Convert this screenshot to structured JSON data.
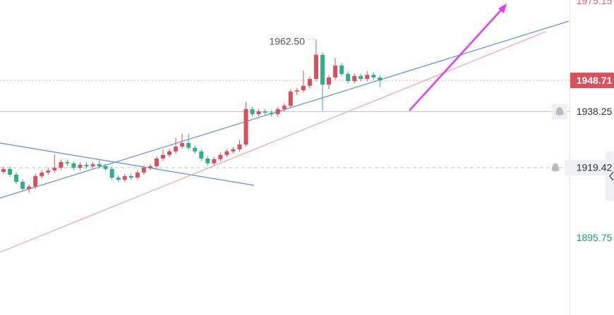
{
  "chart_data": {
    "type": "candlestick",
    "ylim": [
      1870,
      1975.7
    ],
    "yticks": [
      1975.15,
      1895.75
    ],
    "ytick_colors": [
      "#e0606e",
      "#1a9e77"
    ],
    "up_color": "#d9505a",
    "down_color": "#2fae8a",
    "current_price": 1948.71,
    "alerts": [
      1938.25,
      1919.42
    ],
    "max_label": {
      "value": 1962.5,
      "label": "1962.50"
    },
    "candles": [
      [
        1918.0,
        1919.8,
        1917.2,
        1919.0
      ],
      [
        1919.0,
        1919.8,
        1916.3,
        1917.1
      ],
      [
        1917.1,
        1917.9,
        1913.9,
        1914.7
      ],
      [
        1914.7,
        1915.5,
        1911.5,
        1912.3
      ],
      [
        1912.3,
        1913.9,
        1911.0,
        1913.1
      ],
      [
        1913.1,
        1917.4,
        1912.3,
        1916.6
      ],
      [
        1916.6,
        1918.6,
        1915.8,
        1917.8
      ],
      [
        1917.8,
        1919.3,
        1917.0,
        1918.5
      ],
      [
        1918.5,
        1924.0,
        1917.7,
        1919.4
      ],
      [
        1919.4,
        1922.1,
        1918.6,
        1921.3
      ],
      [
        1921.3,
        1922.1,
        1920.1,
        1920.9
      ],
      [
        1920.9,
        1921.7,
        1918.6,
        1919.4
      ],
      [
        1919.4,
        1921.2,
        1918.6,
        1920.4
      ],
      [
        1920.4,
        1921.2,
        1919.1,
        1919.9
      ],
      [
        1919.9,
        1921.4,
        1919.1,
        1920.6
      ],
      [
        1920.6,
        1922.0,
        1919.1,
        1919.9
      ],
      [
        1919.9,
        1920.7,
        1918.2,
        1919.0
      ],
      [
        1919.0,
        1919.8,
        1915.3,
        1916.1
      ],
      [
        1916.1,
        1916.9,
        1914.6,
        1915.4
      ],
      [
        1915.4,
        1917.4,
        1914.6,
        1916.6
      ],
      [
        1916.6,
        1917.4,
        1915.3,
        1916.1
      ],
      [
        1916.1,
        1918.6,
        1915.3,
        1917.8
      ],
      [
        1917.8,
        1920.2,
        1917.0,
        1919.4
      ],
      [
        1919.4,
        1920.7,
        1918.6,
        1919.9
      ],
      [
        1919.9,
        1923.3,
        1919.1,
        1922.5
      ],
      [
        1922.5,
        1925.5,
        1921.7,
        1923.7
      ],
      [
        1923.7,
        1925.7,
        1922.9,
        1924.9
      ],
      [
        1924.9,
        1929.5,
        1924.1,
        1926.5
      ],
      [
        1926.5,
        1930.8,
        1925.7,
        1927.7
      ],
      [
        1927.7,
        1930.8,
        1925.3,
        1926.1
      ],
      [
        1926.1,
        1926.9,
        1924.1,
        1924.9
      ],
      [
        1924.9,
        1925.7,
        1921.7,
        1922.5
      ],
      [
        1922.5,
        1923.3,
        1920.1,
        1920.9
      ],
      [
        1920.9,
        1923.1,
        1920.1,
        1922.3
      ],
      [
        1922.3,
        1924.5,
        1921.5,
        1923.7
      ],
      [
        1923.7,
        1925.7,
        1922.9,
        1924.9
      ],
      [
        1924.9,
        1926.4,
        1924.1,
        1925.6
      ],
      [
        1925.6,
        1928.6,
        1924.8,
        1927.2
      ],
      [
        1927.2,
        1941.5,
        1926.5,
        1939.1
      ],
      [
        1939.1,
        1939.9,
        1936.6,
        1937.4
      ],
      [
        1937.4,
        1939.1,
        1936.6,
        1938.3
      ],
      [
        1938.3,
        1939.1,
        1937.1,
        1937.9
      ],
      [
        1937.9,
        1938.7,
        1936.6,
        1937.4
      ],
      [
        1937.4,
        1939.9,
        1936.6,
        1939.1
      ],
      [
        1939.1,
        1941.0,
        1938.3,
        1940.2
      ],
      [
        1940.2,
        1945.8,
        1939.4,
        1945.0
      ],
      [
        1945.0,
        1946.2,
        1943.8,
        1945.4
      ],
      [
        1945.4,
        1952.0,
        1944.6,
        1946.9
      ],
      [
        1946.9,
        1950.0,
        1946.1,
        1949.2
      ],
      [
        1949.2,
        1962.5,
        1948.4,
        1957.3
      ],
      [
        1957.3,
        1958.1,
        1938.5,
        1947.3
      ],
      [
        1947.3,
        1950.5,
        1945.8,
        1949.7
      ],
      [
        1949.7,
        1956.3,
        1948.9,
        1953.7
      ],
      [
        1953.7,
        1954.5,
        1950.1,
        1950.9
      ],
      [
        1950.9,
        1951.7,
        1947.7,
        1948.5
      ],
      [
        1948.5,
        1951.0,
        1947.7,
        1950.2
      ],
      [
        1950.2,
        1951.0,
        1948.4,
        1949.2
      ],
      [
        1949.2,
        1951.9,
        1948.4,
        1950.6
      ],
      [
        1950.6,
        1951.4,
        1948.9,
        1949.7
      ],
      [
        1949.7,
        1950.5,
        1946.5,
        1948.71
      ]
    ]
  }
}
